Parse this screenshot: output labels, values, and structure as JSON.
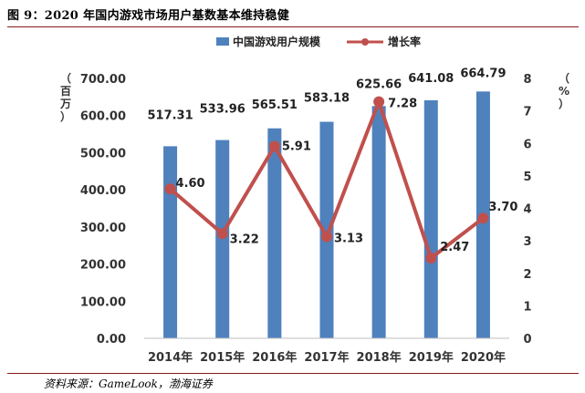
{
  "figure": {
    "title": "图 9：2020 年国内游戏市场用户基数基本维持稳健",
    "source": "资料来源：GameLook，渤海证券"
  },
  "colors": {
    "bar": "#4f81bd",
    "line": "#c0504d",
    "rule": "#8b1a1a"
  },
  "chart_data": {
    "type": "bar",
    "categories": [
      "2014年",
      "2015年",
      "2016年",
      "2017年",
      "2018年",
      "2019年",
      "2020年"
    ],
    "series": [
      {
        "name": "中国游戏用户规模",
        "type": "bar",
        "axis": "left",
        "values": [
          517.31,
          533.96,
          565.51,
          583.18,
          625.66,
          641.08,
          664.79
        ],
        "labels": [
          "517.31",
          "533.96",
          "565.51",
          "583.18",
          "625.66",
          "641.08",
          "664.79"
        ]
      },
      {
        "name": "增长率",
        "type": "line",
        "axis": "right",
        "values": [
          4.6,
          3.22,
          5.91,
          3.13,
          7.28,
          2.47,
          3.7
        ],
        "labels": [
          "4.60",
          "3.22",
          "5.91",
          "3.13",
          "7.28",
          "2.47",
          "3.70"
        ]
      }
    ],
    "ylabel": "（百万）",
    "y2label": "（%）",
    "ylim": [
      0,
      700
    ],
    "y2lim": [
      0,
      8
    ],
    "yticks": [
      "0.00",
      "100.00",
      "200.00",
      "300.00",
      "400.00",
      "500.00",
      "600.00",
      "700.00"
    ],
    "y2ticks": [
      "0",
      "1",
      "2",
      "3",
      "4",
      "5",
      "6",
      "7",
      "8"
    ],
    "legend_position": "top",
    "grid": false
  }
}
